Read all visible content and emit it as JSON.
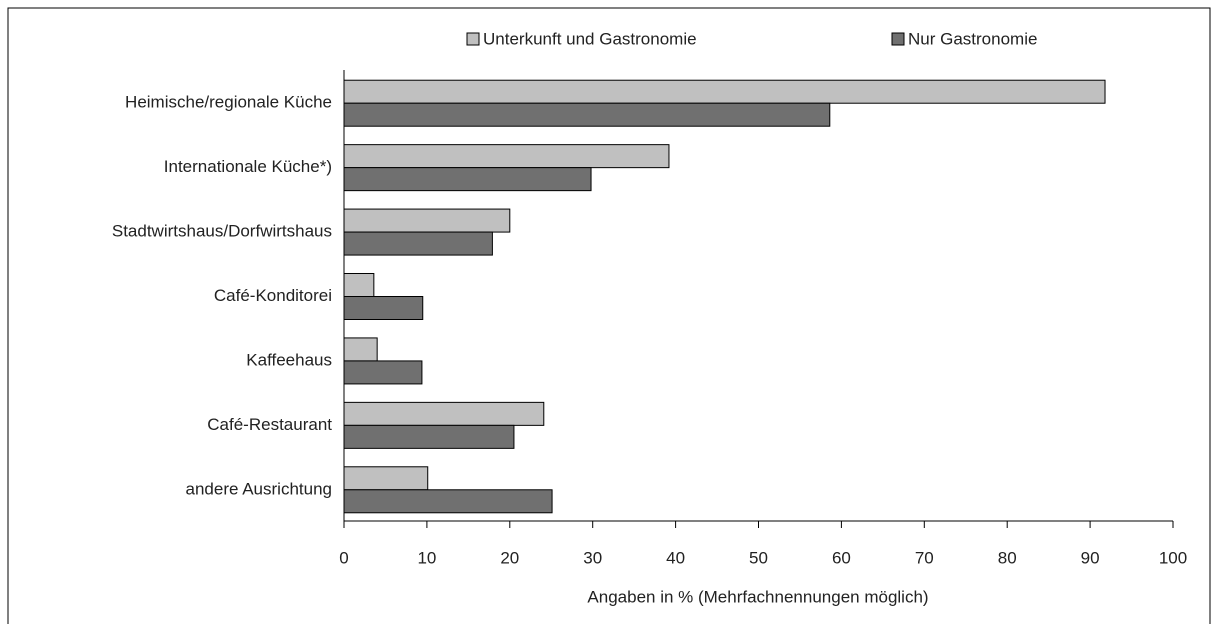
{
  "chart_data": {
    "type": "barh",
    "xlabel": "Angaben in % (Mehrfachnennungen möglich)",
    "categories": [
      "Heimische/regionale Küche",
      "Internationale Küche*)",
      "Stadtwirtshaus/Dorfwirtshaus",
      "Café-Konditorei",
      "Kaffeehaus",
      "Café-Restaurant",
      "andere Ausrichtung"
    ],
    "series": [
      {
        "name": "Unterkunft und Gastronomie",
        "color": "#c0c0c0",
        "values": [
          91.8,
          39.2,
          20.0,
          3.6,
          4.0,
          24.1,
          10.1
        ]
      },
      {
        "name": "Nur Gastronomie",
        "color": "#707070",
        "values": [
          58.6,
          29.8,
          17.9,
          9.5,
          9.4,
          20.5,
          25.1
        ]
      }
    ],
    "xlim": [
      0,
      100
    ],
    "xticks": [
      0,
      10,
      20,
      30,
      40,
      50,
      60,
      70,
      80,
      90,
      100
    ],
    "legend": "top"
  }
}
